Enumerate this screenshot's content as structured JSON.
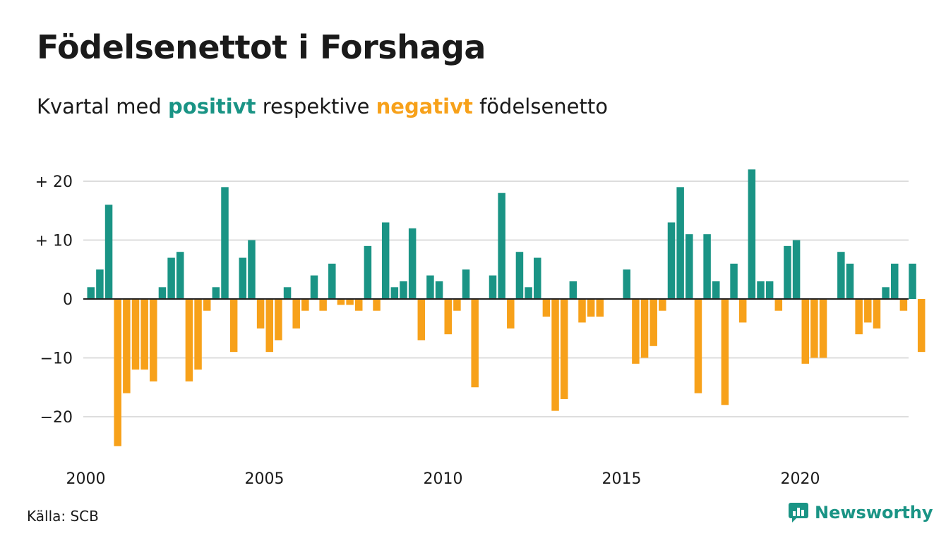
{
  "title": "Födelsenettot i Forshaga",
  "subtitle": {
    "prefix": "Kvartal med",
    "positive": "positivt",
    "middle": "respektive",
    "negative": "negativt",
    "suffix": "födelsenetto"
  },
  "source": "Källa: SCB",
  "brand": {
    "name": "Newsworthy",
    "icon": "newsworthy-logo-icon"
  },
  "colors": {
    "positive": "#1a9485",
    "negative": "#f7a11a",
    "grid": "#dddddd",
    "axis": "#222222"
  },
  "chart_data": {
    "type": "bar",
    "x_start": "2000 Q1",
    "y_ticks": [
      {
        "value": 20,
        "label": "+ 20"
      },
      {
        "value": 10,
        "label": "+ 10"
      },
      {
        "value": 0,
        "label": "0"
      },
      {
        "value": -10,
        "label": "−10"
      },
      {
        "value": -20,
        "label": "−20"
      }
    ],
    "x_ticks": [
      {
        "year": 2000,
        "label": "2000"
      },
      {
        "year": 2005,
        "label": "2005"
      },
      {
        "year": 2010,
        "label": "2010"
      },
      {
        "year": 2015,
        "label": "2015"
      },
      {
        "year": 2020,
        "label": "2020"
      }
    ],
    "ylim": [
      -25,
      22
    ],
    "grid": true,
    "values": [
      2,
      5,
      16,
      -25,
      -16,
      -12,
      -12,
      -14,
      2,
      7,
      8,
      -14,
      -12,
      -2,
      2,
      19,
      -9,
      7,
      10,
      -5,
      -9,
      -7,
      2,
      -5,
      -2,
      4,
      -2,
      6,
      -1,
      -1,
      -2,
      9,
      -2,
      13,
      2,
      3,
      12,
      -7,
      4,
      3,
      -6,
      -2,
      5,
      -15,
      0,
      4,
      18,
      -5,
      8,
      2,
      7,
      -3,
      -19,
      -17,
      3,
      -4,
      -3,
      -3,
      0,
      0,
      5,
      -11,
      -10,
      -8,
      -2,
      13,
      19,
      11,
      -16,
      11,
      3,
      -18,
      6,
      -4,
      22,
      3,
      3,
      -2,
      9,
      10,
      -11,
      -10,
      -10,
      0,
      8,
      6,
      -6,
      -4,
      -5,
      2,
      6,
      -2,
      6,
      -9
    ]
  }
}
